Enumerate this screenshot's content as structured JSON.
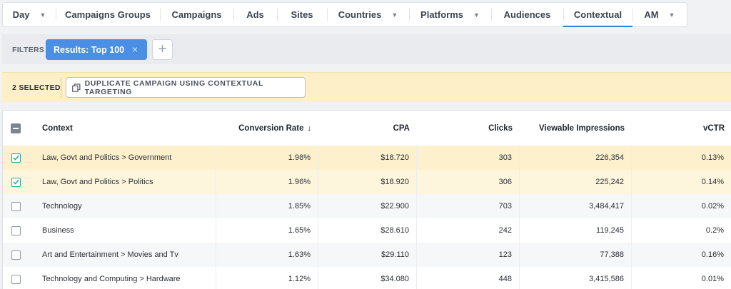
{
  "tabs": [
    {
      "label": "Day",
      "dropdown": true,
      "active": false
    },
    {
      "label": "Campaigns Groups",
      "dropdown": false,
      "active": false
    },
    {
      "label": "Campaigns",
      "dropdown": false,
      "active": false
    },
    {
      "label": "Ads",
      "dropdown": false,
      "active": false
    },
    {
      "label": "Sites",
      "dropdown": false,
      "active": false
    },
    {
      "label": "Countries",
      "dropdown": true,
      "active": false
    },
    {
      "label": "Platforms",
      "dropdown": true,
      "active": false
    },
    {
      "label": "Audiences",
      "dropdown": false,
      "active": false
    },
    {
      "label": "Contextual",
      "dropdown": false,
      "active": true
    },
    {
      "label": "AM",
      "dropdown": true,
      "active": false
    }
  ],
  "filters": {
    "label": "FILTERS",
    "chip_label": "Results: Top 100",
    "chip_remove": "×",
    "add": "+"
  },
  "selection": {
    "count_label": "2 SELECTED",
    "action_label": "DUPLICATE CAMPAIGN USING CONTEXTUAL TARGETING"
  },
  "table": {
    "columns": {
      "context": "Context",
      "conversion_rate": "Conversion Rate",
      "cpa": "CPA",
      "clicks": "Clicks",
      "viewable_impressions": "Viewable Impressions",
      "vctr": "vCTR"
    },
    "sort_indicator": "↓",
    "rows": [
      {
        "selected": true,
        "context": "Law, Govt and Politics > Government",
        "conversion_rate": "1.98%",
        "cpa": "$18.720",
        "clicks": "303",
        "viewable_impressions": "226,354",
        "vctr": "0.13%"
      },
      {
        "selected": true,
        "context": "Law, Govt and Politics > Politics",
        "conversion_rate": "1.96%",
        "cpa": "$18.920",
        "clicks": "306",
        "viewable_impressions": "225,242",
        "vctr": "0.14%"
      },
      {
        "selected": false,
        "context": "Technology",
        "conversion_rate": "1.85%",
        "cpa": "$22.900",
        "clicks": "703",
        "viewable_impressions": "3,484,417",
        "vctr": "0.02%"
      },
      {
        "selected": false,
        "context": "Business",
        "conversion_rate": "1.65%",
        "cpa": "$28.610",
        "clicks": "242",
        "viewable_impressions": "119,245",
        "vctr": "0.2%"
      },
      {
        "selected": false,
        "context": "Art and Entertainment > Movies and Tv",
        "conversion_rate": "1.63%",
        "cpa": "$29.110",
        "clicks": "123",
        "viewable_impressions": "77,388",
        "vctr": "0.16%"
      },
      {
        "selected": false,
        "context": "Technology and Computing > Hardware",
        "conversion_rate": "1.12%",
        "cpa": "$34.080",
        "clicks": "448",
        "viewable_impressions": "3,415,586",
        "vctr": "0.01%"
      }
    ]
  },
  "colors": {
    "accent": "#2f7fd1",
    "chip": "#4a8fe4",
    "selection_bar": "#fdf0c8",
    "check": "#2aa596"
  }
}
